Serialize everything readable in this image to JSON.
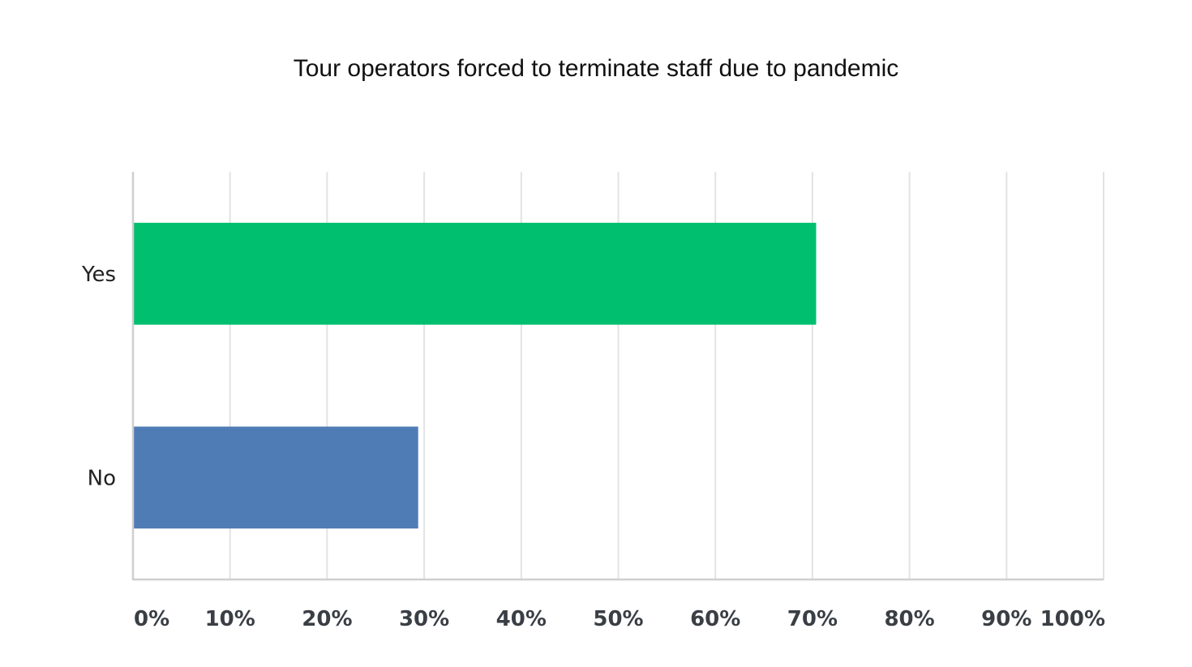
{
  "chart_data": {
    "type": "bar",
    "orientation": "horizontal",
    "title": "Tour operators forced to terminate staff due to pandemic",
    "categories": [
      "Yes",
      "No"
    ],
    "values": [
      70.3,
      29.3
    ],
    "colors": [
      "#00bf6f",
      "#507cb6"
    ],
    "xlim": [
      0,
      100
    ],
    "x_ticks": [
      "0%",
      "10%",
      "20%",
      "30%",
      "40%",
      "50%",
      "60%",
      "70%",
      "80%",
      "90%",
      "100%"
    ],
    "grid": true,
    "legend": "none"
  }
}
